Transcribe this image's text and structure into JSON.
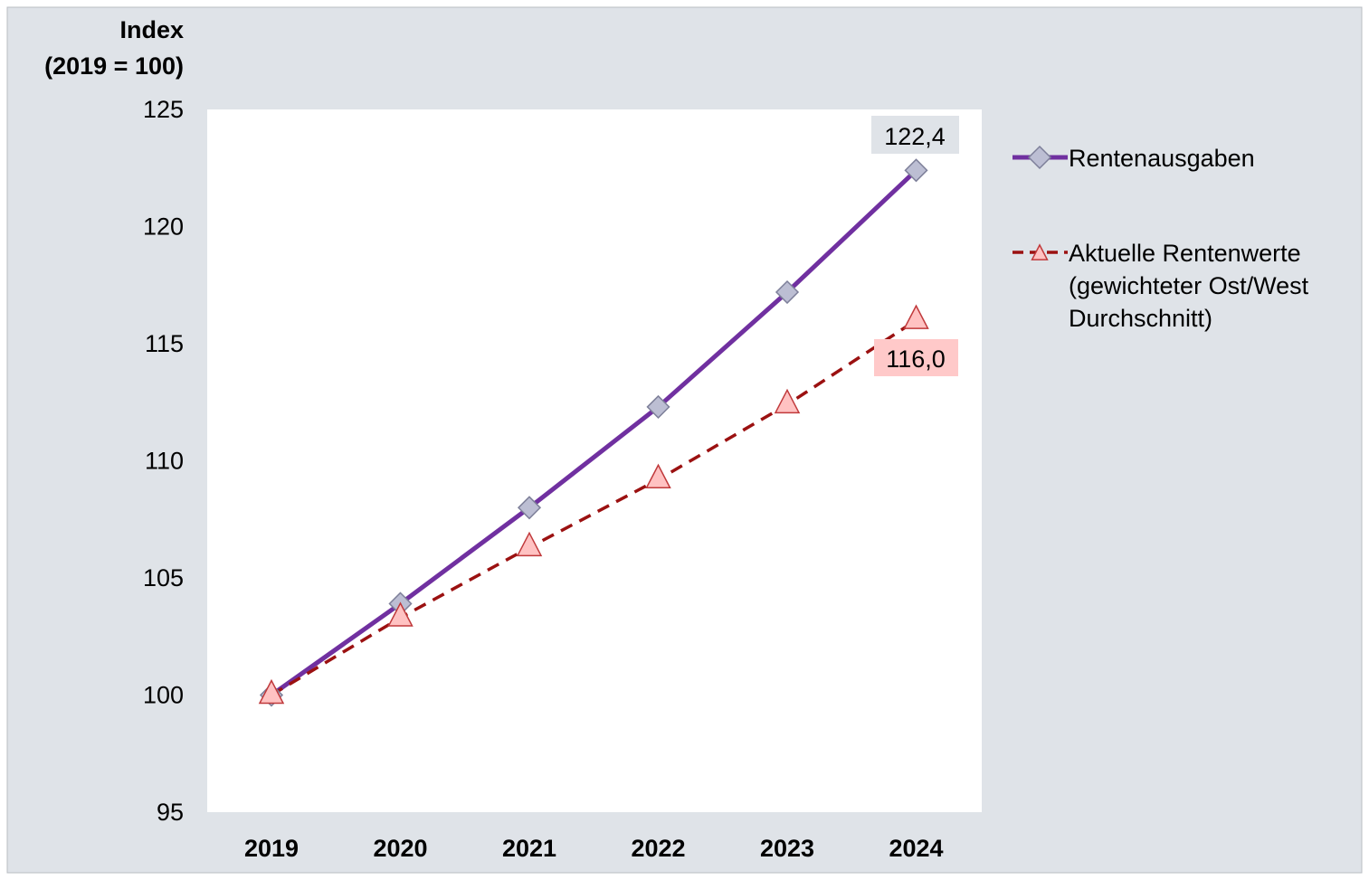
{
  "colors": {
    "outer_background": "#dfe3e8",
    "plot_background": "#ffffff",
    "rentenausgaben_line": "#7030a0",
    "rentenausgaben_marker": "#bcbed3",
    "rentenwerte_line": "#9b1111",
    "rentenwerte_marker": "#ffc2c2",
    "label_bg_rentenausgaben": "#dfe3e8",
    "label_bg_rentenwerte": "#ffc9c9"
  },
  "chart_data": {
    "type": "line",
    "title": "",
    "ylabel_line1": "Index",
    "ylabel_line2": "(2019 = 100)",
    "xlabel": "",
    "ylim": [
      95,
      125
    ],
    "yticks": [
      95,
      100,
      105,
      110,
      115,
      120,
      125
    ],
    "categories": [
      "2019",
      "2020",
      "2021",
      "2022",
      "2023",
      "2024"
    ],
    "grid": false,
    "legend_position": "right",
    "series": [
      {
        "name": "Rentenausgaben",
        "values": [
          100.0,
          103.9,
          108.0,
          112.3,
          117.2,
          122.4
        ],
        "line_style": "solid",
        "marker": "diamond",
        "end_label": "122,4"
      },
      {
        "name": "Aktuelle Rentenwerte (gewichteter Ost/West Durchschnitt)",
        "name_lines": [
          "Aktuelle Rentenwerte",
          "(gewichteter Ost/West",
          "Durchschnitt)"
        ],
        "values": [
          100.0,
          103.3,
          106.3,
          109.2,
          112.4,
          116.0
        ],
        "line_style": "dashed",
        "marker": "triangle",
        "end_label": "116,0"
      }
    ]
  }
}
